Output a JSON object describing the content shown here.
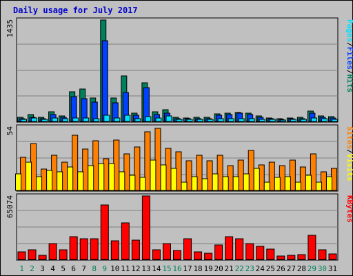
{
  "chart_data": {
    "type": "bar",
    "title": "Daily usage for July 2017",
    "days": [
      "1",
      "2",
      "3",
      "4",
      "5",
      "6",
      "7",
      "8",
      "9",
      "10",
      "11",
      "12",
      "13",
      "14",
      "15",
      "16",
      "17",
      "18",
      "19",
      "20",
      "21",
      "22",
      "23",
      "24",
      "25",
      "26",
      "27",
      "28",
      "29",
      "30",
      "31"
    ],
    "weekend_days": [
      "1",
      "2",
      "8",
      "9",
      "15",
      "16",
      "22",
      "23",
      "29",
      "30"
    ],
    "colors": {
      "hits": "#00805c",
      "files": "#0040ff",
      "pages": "#00e0ff",
      "visits": "#ffff00",
      "sites": "#ff8000",
      "kbytes": "#ff0000",
      "weekday_tick": "#000000",
      "weekend_tick": "#00805c",
      "title": "#0000cc"
    },
    "panels": [
      {
        "id": "hits_files_pages",
        "ymax_label": "1435",
        "ymax": 1435,
        "legend": [
          "Pages",
          "/",
          "Files",
          "/",
          "Hits"
        ],
        "legend_colors": [
          "#00e0ff",
          "#000000",
          "#0040ff",
          "#000000",
          "#00805c"
        ],
        "series": [
          {
            "name": "Hits",
            "color": "#00805c",
            "values": [
              55,
              95,
              55,
              140,
              75,
              420,
              460,
              335,
              1435,
              335,
              640,
              115,
              550,
              135,
              165,
              55,
              45,
              55,
              55,
              105,
              120,
              130,
              115,
              75,
              45,
              35,
              45,
              55,
              145,
              75,
              65
            ]
          },
          {
            "name": "Files",
            "color": "#0040ff",
            "values": [
              35,
              60,
              35,
              95,
              55,
              355,
              325,
              275,
              1140,
              265,
              410,
              90,
              480,
              95,
              115,
              35,
              35,
              35,
              35,
              85,
              95,
              115,
              95,
              55,
              35,
              25,
              35,
              35,
              115,
              55,
              45
            ]
          },
          {
            "name": "Pages",
            "color": "#00e0ff",
            "values": [
              25,
              45,
              25,
              45,
              35,
              45,
              45,
              35,
              85,
              45,
              85,
              35,
              65,
              45,
              75,
              25,
              25,
              25,
              25,
              35,
              35,
              35,
              35,
              25,
              25,
              15,
              25,
              25,
              45,
              35,
              25
            ]
          }
        ]
      },
      {
        "id": "visits_sites",
        "ymax_label": "54",
        "ymax": 54,
        "legend": [
          "Sites",
          "/",
          "Visits"
        ],
        "legend_colors": [
          "#ff8000",
          "#000000",
          "#ffff00"
        ],
        "series": [
          {
            "name": "Sites",
            "color": "#ff8000",
            "values": [
              28,
              40,
              18,
              30,
              24,
              47,
              35,
              42,
              27,
              43,
              31,
              37,
              50,
              53,
              36,
              33,
              25,
              30,
              25,
              30,
              21,
              26,
              34,
              22,
              24,
              21,
              26,
              20,
              31,
              16,
              19
            ]
          },
          {
            "name": "Visits",
            "color": "#ffff00",
            "values": [
              14,
              24,
              12,
              17,
              16,
              20,
              16,
              21,
              23,
              23,
              16,
              13,
              11,
              26,
              22,
              19,
              7,
              12,
              10,
              14,
              12,
              12,
              14,
              19,
              7,
              11,
              12,
              7,
              13,
              7,
              12
            ]
          }
        ]
      },
      {
        "id": "kbytes",
        "ymax_label": "65074",
        "ymax": 65074,
        "legend": [
          "KBytes"
        ],
        "legend_colors": [
          "#ff0000"
        ],
        "series": [
          {
            "name": "KBytes",
            "color": "#ff0000",
            "values": [
              7600,
              9800,
              4100,
              16200,
              9800,
              23500,
              20900,
              20900,
              55800,
              19300,
              37200,
              19600,
              65074,
              9600,
              16600,
              9200,
              21000,
              7600,
              6700,
              14900,
              23500,
              20900,
              16200,
              13100,
              10800,
              3200,
              4100,
              4700,
              24900,
              9800,
              5700
            ]
          }
        ]
      }
    ]
  }
}
